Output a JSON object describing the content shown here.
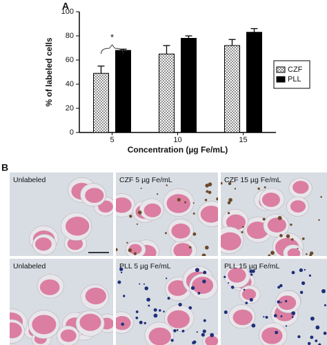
{
  "panel_labels": [
    "A",
    "B"
  ],
  "chart_data": {
    "type": "bar",
    "ylabel": "% of labeled cells",
    "xlabel": "Concentration (µg Fe/mL)",
    "categories": [
      "5",
      "10",
      "15"
    ],
    "series": [
      {
        "name": "CZF",
        "color": "#8c8c8c",
        "pattern": "crosshatch",
        "values": [
          49,
          65,
          72
        ],
        "errors": [
          6,
          7,
          5
        ]
      },
      {
        "name": "PLL",
        "color": "#000000",
        "values": [
          68,
          78,
          83
        ],
        "errors": [
          1,
          2,
          3
        ]
      }
    ],
    "ylim": [
      0,
      100
    ],
    "yticks": [
      0,
      20,
      40,
      60,
      80,
      100
    ],
    "grid": false,
    "legend": "right",
    "annotation": "*"
  },
  "micrographs": [
    {
      "label": "Unlabeled"
    },
    {
      "label": "CZF 5 µg Fe/mL"
    },
    {
      "label": "CZF 15 µg Fe/mL"
    },
    {
      "label": "Unlabeled"
    },
    {
      "label": "PLL 5 µg Fe/mL"
    },
    {
      "label": "PLL 15 µg Fe/mL"
    }
  ]
}
